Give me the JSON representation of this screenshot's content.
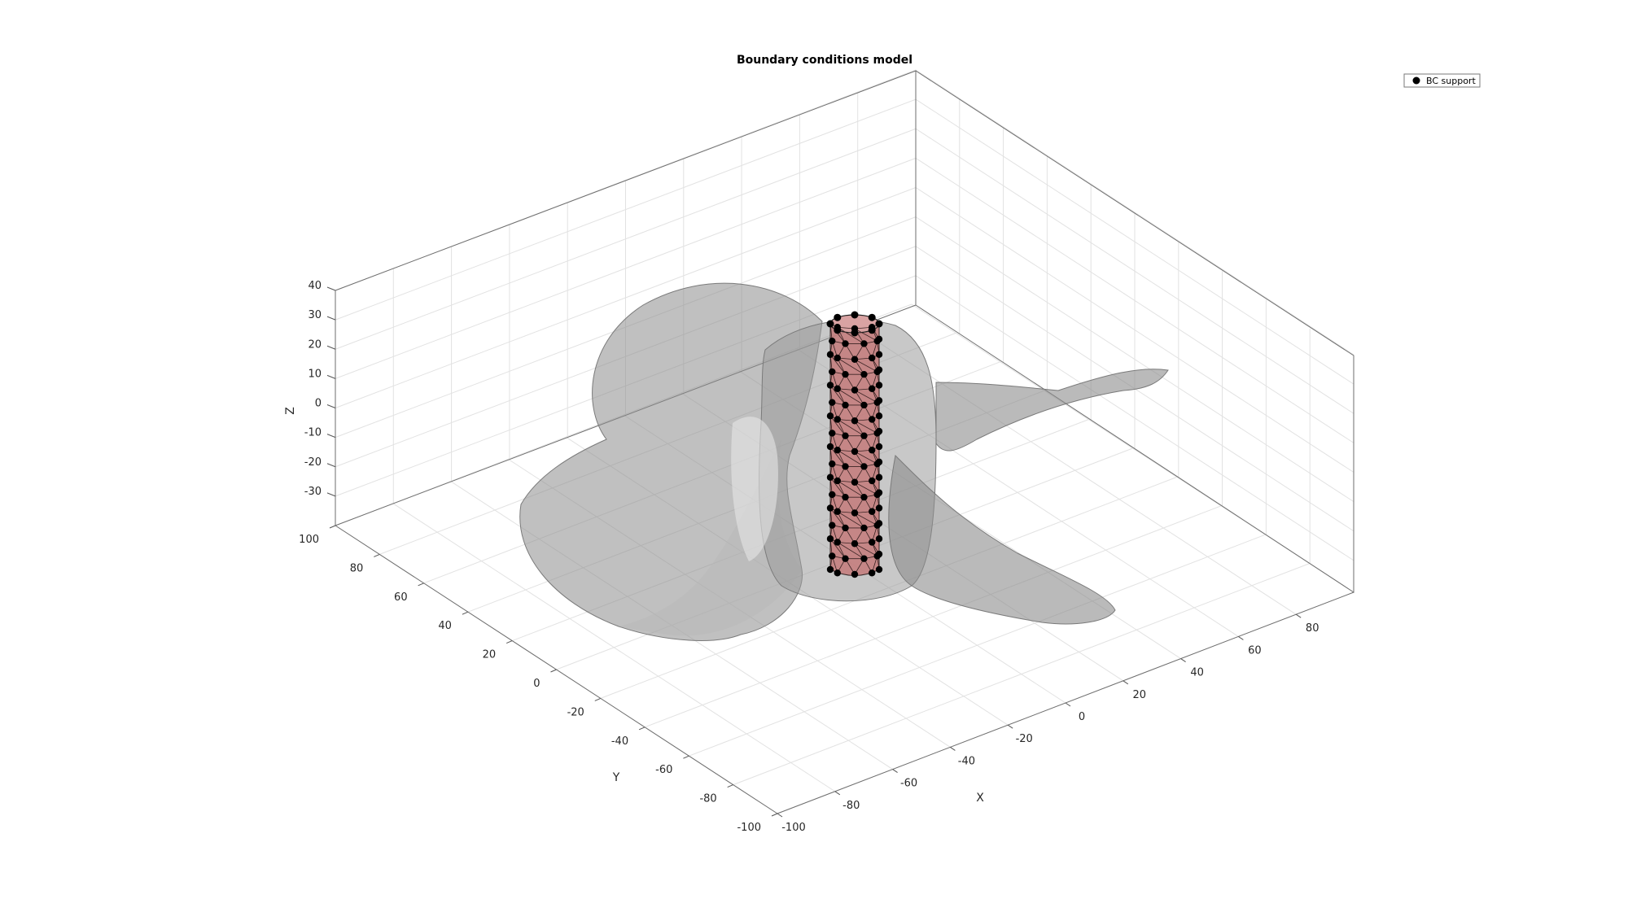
{
  "figure": {
    "title": "Boundary conditions model",
    "legend": {
      "entries": [
        {
          "label": "BC support",
          "marker": "filled-circle",
          "color": "#000000"
        }
      ],
      "placement": "top-right"
    },
    "axes": {
      "x": {
        "label": "X",
        "ticks": [
          "-100",
          "-80",
          "-60",
          "-40",
          "-20",
          "0",
          "20",
          "40",
          "60",
          "80"
        ]
      },
      "y": {
        "label": "Y",
        "ticks": [
          "100",
          "80",
          "60",
          "40",
          "20",
          "0",
          "-20",
          "-40",
          "-60",
          "-80",
          "-100"
        ]
      },
      "z": {
        "label": "Z",
        "ticks": [
          "40",
          "30",
          "20",
          "10",
          "0",
          "-10",
          "-20",
          "-30"
        ]
      },
      "grid": true
    },
    "colors": {
      "surface": "#8c8c8c",
      "support_mesh": "#c47a7a",
      "support_nodes": "#000000",
      "box": "#4d4d4d",
      "grid": "#dcdcdc"
    }
  }
}
